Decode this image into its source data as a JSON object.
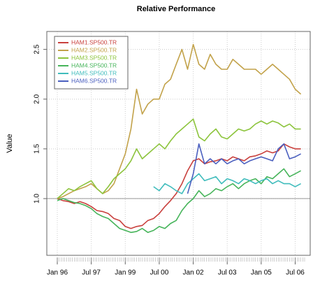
{
  "chart_data": {
    "type": "line",
    "title": "Relative Performance",
    "y_label": "Value",
    "x": [
      "1996-01",
      "1996-04",
      "1996-07",
      "1996-10",
      "1997-01",
      "1997-04",
      "1997-07",
      "1997-10",
      "1998-01",
      "1998-04",
      "1998-07",
      "1998-10",
      "1999-01",
      "1999-04",
      "1999-07",
      "1999-10",
      "2000-01",
      "2000-04",
      "2000-07",
      "2000-10",
      "2001-01",
      "2001-04",
      "2001-07",
      "2001-10",
      "2002-01",
      "2002-04",
      "2002-07",
      "2002-10",
      "2003-01",
      "2003-04",
      "2003-07",
      "2003-10",
      "2004-01",
      "2004-04",
      "2004-07",
      "2004-10",
      "2005-01",
      "2005-04",
      "2005-07",
      "2005-10",
      "2006-01",
      "2006-04",
      "2006-07",
      "2006-10"
    ],
    "series": [
      {
        "name": "HAM1.SP500.TR",
        "color": "#c9403d",
        "values": [
          1.0,
          0.98,
          0.97,
          0.95,
          0.97,
          0.95,
          0.92,
          0.88,
          0.87,
          0.85,
          0.8,
          0.78,
          0.72,
          0.7,
          0.72,
          0.73,
          0.78,
          0.8,
          0.85,
          0.92,
          0.98,
          1.05,
          1.15,
          1.28,
          1.38,
          1.4,
          1.35,
          1.37,
          1.38,
          1.4,
          1.38,
          1.42,
          1.4,
          1.38,
          1.42,
          1.43,
          1.45,
          1.48,
          1.46,
          1.48,
          1.55,
          1.52,
          1.5,
          1.5
        ]
      },
      {
        "name": "HAM2.SP500.TR",
        "color": "#c2a24a",
        "values": [
          1.0,
          1.02,
          1.05,
          1.08,
          1.1,
          1.12,
          1.15,
          1.1,
          1.05,
          1.08,
          1.15,
          1.3,
          1.45,
          1.7,
          2.1,
          1.85,
          1.95,
          2.0,
          2.0,
          2.15,
          2.2,
          2.35,
          2.5,
          2.3,
          2.55,
          2.35,
          2.3,
          2.45,
          2.35,
          2.3,
          2.3,
          2.4,
          2.35,
          2.3,
          2.3,
          2.3,
          2.25,
          2.3,
          2.35,
          2.3,
          2.25,
          2.2,
          2.1,
          2.05
        ]
      },
      {
        "name": "HAM3.SP500.TR",
        "color": "#8cc43c",
        "values": [
          1.0,
          1.05,
          1.1,
          1.08,
          1.12,
          1.15,
          1.18,
          1.1,
          1.05,
          1.12,
          1.2,
          1.25,
          1.3,
          1.38,
          1.5,
          1.4,
          1.45,
          1.5,
          1.55,
          1.5,
          1.58,
          1.65,
          1.7,
          1.75,
          1.8,
          1.62,
          1.58,
          1.65,
          1.7,
          1.62,
          1.6,
          1.65,
          1.7,
          1.68,
          1.7,
          1.75,
          1.78,
          1.75,
          1.78,
          1.76,
          1.72,
          1.75,
          1.7,
          1.7
        ]
      },
      {
        "name": "HAM4.SP500.TR",
        "color": "#46b45a",
        "values": [
          0.98,
          1.0,
          0.98,
          0.96,
          0.95,
          0.93,
          0.9,
          0.85,
          0.82,
          0.8,
          0.75,
          0.7,
          0.68,
          0.66,
          0.67,
          0.7,
          0.66,
          0.68,
          0.72,
          0.7,
          0.75,
          0.78,
          0.88,
          0.95,
          1.0,
          1.08,
          1.02,
          1.05,
          1.1,
          1.08,
          1.12,
          1.15,
          1.1,
          1.15,
          1.18,
          1.2,
          1.15,
          1.22,
          1.2,
          1.25,
          1.3,
          1.22,
          1.25,
          1.28
        ]
      },
      {
        "name": "HAM5.SP500.TR",
        "color": "#3fbcbc",
        "values": [
          null,
          null,
          null,
          null,
          null,
          null,
          null,
          null,
          null,
          null,
          null,
          null,
          null,
          null,
          null,
          null,
          null,
          1.12,
          1.08,
          1.15,
          1.12,
          1.08,
          1.05,
          1.15,
          1.2,
          1.25,
          1.18,
          1.2,
          1.22,
          1.15,
          1.2,
          1.18,
          1.15,
          1.2,
          1.18,
          1.15,
          1.18,
          1.2,
          1.15,
          1.18,
          1.15,
          1.15,
          1.12,
          1.15
        ]
      },
      {
        "name": "HAM6.SP500.TR",
        "color": "#4a5fbf",
        "values": [
          null,
          null,
          null,
          null,
          null,
          null,
          null,
          null,
          null,
          null,
          null,
          null,
          null,
          null,
          null,
          null,
          null,
          null,
          null,
          null,
          null,
          null,
          null,
          1.05,
          1.25,
          1.55,
          1.35,
          1.4,
          1.35,
          1.4,
          1.35,
          1.38,
          1.4,
          1.35,
          1.38,
          1.4,
          1.42,
          1.4,
          1.38,
          1.5,
          1.55,
          1.4,
          1.42,
          1.45
        ]
      }
    ],
    "xlim": [
      "1996-01",
      "2006-12"
    ],
    "xticks": [
      {
        "value": "1996-01",
        "label": "Jan 96"
      },
      {
        "value": "1997-07",
        "label": "Jul 97"
      },
      {
        "value": "1999-01",
        "label": "Jan 99"
      },
      {
        "value": "2000-07",
        "label": "Jul 00"
      },
      {
        "value": "2002-01",
        "label": "Jan 02"
      },
      {
        "value": "2003-07",
        "label": "Jul 03"
      },
      {
        "value": "2005-01",
        "label": "Jan 05"
      },
      {
        "value": "2006-07",
        "label": "Jul 06"
      }
    ],
    "ylim": [
      0.43,
      2.68
    ],
    "yticks": [
      {
        "value": 1,
        "label": "1.0"
      },
      1.5,
      {
        "value": 2,
        "label": "2.0"
      },
      2.5
    ],
    "reference_line": 1,
    "grid": true,
    "legend": "top-left"
  }
}
